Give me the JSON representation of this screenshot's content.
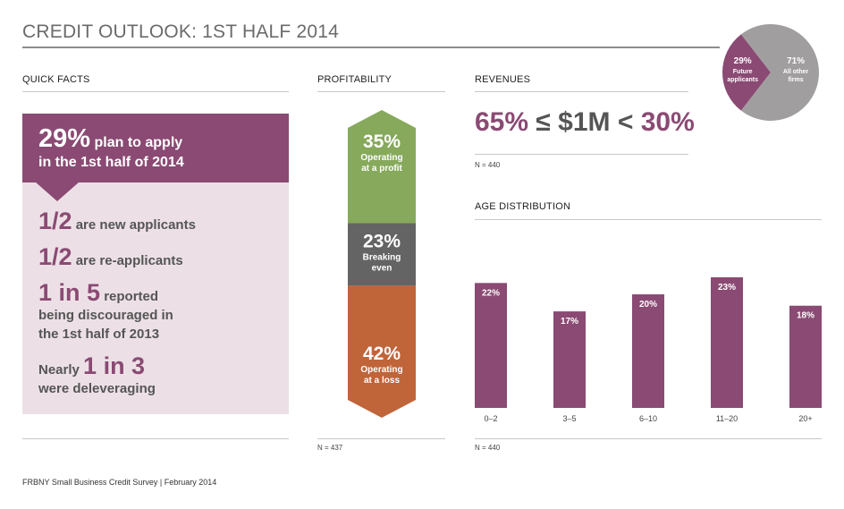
{
  "title": "CREDIT OUTLOOK: 1ST HALF 2014",
  "footer": "FRBNY Small Business Credit Survey  |  February 2014",
  "quick_facts": {
    "label": "QUICK FACTS",
    "headline_big": "29%",
    "headline_rest": " plan to apply",
    "headline_line2": "in the 1st half of 2014",
    "facts": [
      {
        "num": "1/2",
        "text": " are new applicants"
      },
      {
        "num": "1/2",
        "text": " are re-applicants"
      },
      {
        "num": "1 in 5",
        "text": "  reported",
        "sub": [
          "being discouraged in",
          "the 1st half of 2013"
        ]
      },
      {
        "pre": "Nearly ",
        "num": "1 in 3",
        "sub": [
          "were deleveraging"
        ]
      }
    ],
    "colors": {
      "accent": "#8a4a73",
      "panel": "#ece0e6"
    }
  },
  "profitability": {
    "label": "PROFITABILITY",
    "n_label": "N = 437",
    "segments": [
      {
        "value": 35,
        "value_label": "35%",
        "line1": "Operating",
        "line2": "at a profit",
        "color": "#86a95b"
      },
      {
        "value": 23,
        "value_label": "23%",
        "line1": "Breaking",
        "line2": "even",
        "color": "#646464"
      },
      {
        "value": 42,
        "value_label": "42%",
        "line1": "Operating",
        "line2": "at a loss",
        "color": "#c0643a"
      }
    ]
  },
  "revenues": {
    "label": "REVENUES",
    "n_label": "N = 440",
    "stat_left": "65%",
    "stat_mid": " ≤ $1M < ",
    "stat_right": "30%"
  },
  "pie": {
    "slices": [
      {
        "value": 29,
        "pct": "29%",
        "line1": "Future",
        "line2": "applicants",
        "color": "#8a4a73"
      },
      {
        "value": 71,
        "pct": "71%",
        "line1": "All other",
        "line2": "firms",
        "color": "#a09e9f"
      }
    ]
  },
  "chart_data": {
    "type": "bar",
    "title": "AGE DISTRIBUTION",
    "categories": [
      "0–2",
      "3–5",
      "6–10",
      "11–20",
      "20+"
    ],
    "values": [
      22,
      17,
      20,
      23,
      18
    ],
    "value_labels": [
      "22%",
      "17%",
      "20%",
      "23%",
      "18%"
    ],
    "ylim": [
      0,
      23
    ],
    "grid": false,
    "n_label": "N = 440",
    "color": "#8a4a73"
  }
}
